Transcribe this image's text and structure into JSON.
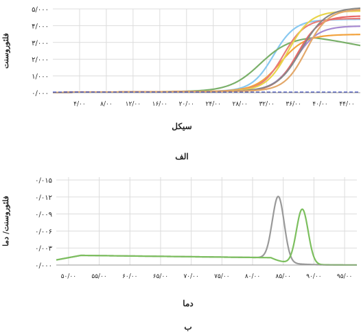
{
  "colors": {
    "grid": "#dcdcdc",
    "axis": "#999999",
    "threshold": "#2233bb"
  },
  "chart_data": [
    {
      "type": "line",
      "panel_label": "الف",
      "xlabel": "سیکل",
      "ylabel": "فلئوروسنت",
      "xlim": [
        0,
        46
      ],
      "ylim": [
        0,
        5000
      ],
      "xticks": [
        4,
        8,
        12,
        16,
        20,
        24,
        28,
        32,
        36,
        40,
        44
      ],
      "xtick_labels": [
        "۴/۰۰",
        "۸/۰۰",
        "۱۲/۰۰",
        "۱۶/۰۰",
        "۲۰/۰۰",
        "۲۴/۰۰",
        "۲۸/۰۰",
        "۳۲/۰۰",
        "۳۶/۰۰",
        "۴۰/۰۰",
        "۴۴/۰۰"
      ],
      "yticks": [
        0,
        1000,
        2000,
        3000,
        4000,
        5000
      ],
      "ytick_labels": [
        "۰/۰۰۰",
        "۱/۰۰۰",
        "۲/۰۰۰",
        "۳/۰۰۰",
        "۴/۰۰۰",
        "۵/۰۰۰"
      ],
      "grid": true,
      "threshold": 30,
      "series": [
        {
          "color": "#88c8f0",
          "ct": 33.0,
          "plateau": 4250,
          "k": 0.62
        },
        {
          "color": "#7ab06a",
          "ct": 31.0,
          "plateau": 3250,
          "k": 0.45,
          "decline_after": 39,
          "decline_rate": 80
        },
        {
          "color": "#f2a23c",
          "ct": 34.0,
          "plateau": 3350,
          "k": 0.55
        },
        {
          "color": "#e87d78",
          "ct": 34.5,
          "plateau": 4300,
          "k": 0.62
        },
        {
          "color": "#e8d44a",
          "ct": 35.2,
          "plateau": 4750,
          "k": 0.6
        },
        {
          "color": "#a78ad2",
          "ct": 36.3,
          "plateau": 3850,
          "k": 0.6
        },
        {
          "color": "#e86868",
          "ct": 36.6,
          "plateau": 4450,
          "k": 0.62
        },
        {
          "color": "#888888",
          "ct": 37.2,
          "plateau": 4950,
          "k": 0.55
        },
        {
          "color": "#e3a86a",
          "ct": 37.9,
          "plateau": 4850,
          "k": 0.62
        }
      ]
    },
    {
      "type": "line",
      "panel_label": "ب",
      "xlabel": "دما",
      "ylabel": "فلئوروسنت/ دما",
      "xlim": [
        48,
        97
      ],
      "ylim": [
        0,
        0.0155
      ],
      "xticks": [
        50,
        55,
        60,
        65,
        70,
        75,
        80,
        85,
        90,
        95
      ],
      "xtick_labels": [
        "۵۰/۰۰",
        "۵۵/۰۰",
        "۶۰/۰۰",
        "۶۵/۰۰",
        "۷۰/۰۰",
        "۷۵/۰۰",
        "۸۰/۰۰",
        "۸۵/۰۰",
        "۹۰/۰۰",
        "۹۵/۰۰"
      ],
      "yticks": [
        0,
        0.003,
        0.006,
        0.009,
        0.012,
        0.015
      ],
      "ytick_labels": [
        "۰/۰۰۰",
        "۰/۰۰۳",
        "۰/۰۰۶",
        "۰/۰۰۹",
        "۰/۰۱۲",
        "۰/۰۱۵"
      ],
      "grid": true,
      "series": [
        {
          "color": "#999999",
          "peak_x": 84.2,
          "peak_y": 0.0113,
          "width": 1.35
        },
        {
          "color": "#7cbf5e",
          "peak_x": 88.1,
          "peak_y": 0.0097,
          "width": 1.35
        }
      ]
    }
  ]
}
